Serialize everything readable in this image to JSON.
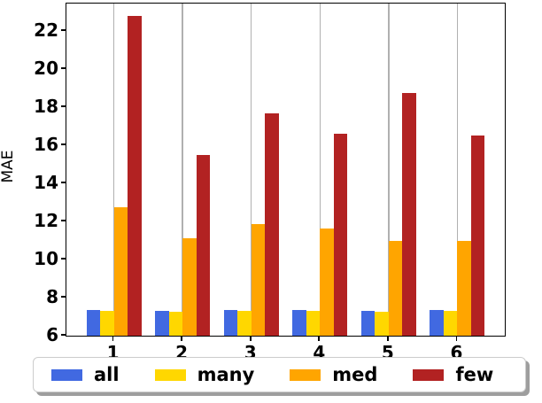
{
  "chart_data": {
    "type": "bar",
    "title": "",
    "xlabel": "",
    "ylabel": "MAE",
    "categories": [
      "1",
      "2",
      "3",
      "4",
      "5",
      "6"
    ],
    "series": [
      {
        "name": "all",
        "color": "#4169E1",
        "values": [
          7.35,
          7.3,
          7.35,
          7.35,
          7.3,
          7.35
        ]
      },
      {
        "name": "many",
        "color": "#FFD700",
        "values": [
          7.3,
          7.25,
          7.3,
          7.3,
          7.25,
          7.3
        ]
      },
      {
        "name": "med",
        "color": "#FFA500",
        "values": [
          12.75,
          11.1,
          11.85,
          11.65,
          11.0,
          11.0
        ]
      },
      {
        "name": "few",
        "color": "#B22222",
        "values": [
          22.8,
          15.5,
          17.7,
          16.6,
          18.75,
          16.5
        ]
      }
    ],
    "ylim": [
      6,
      23.45
    ],
    "yticks": [
      6,
      8,
      10,
      12,
      14,
      16,
      18,
      20,
      22
    ],
    "grid": "vertical-at-categories",
    "grid_color": "#b0b0b0",
    "legend": {
      "position": "bottom",
      "entries": [
        "all",
        "many",
        "med",
        "few"
      ]
    }
  }
}
